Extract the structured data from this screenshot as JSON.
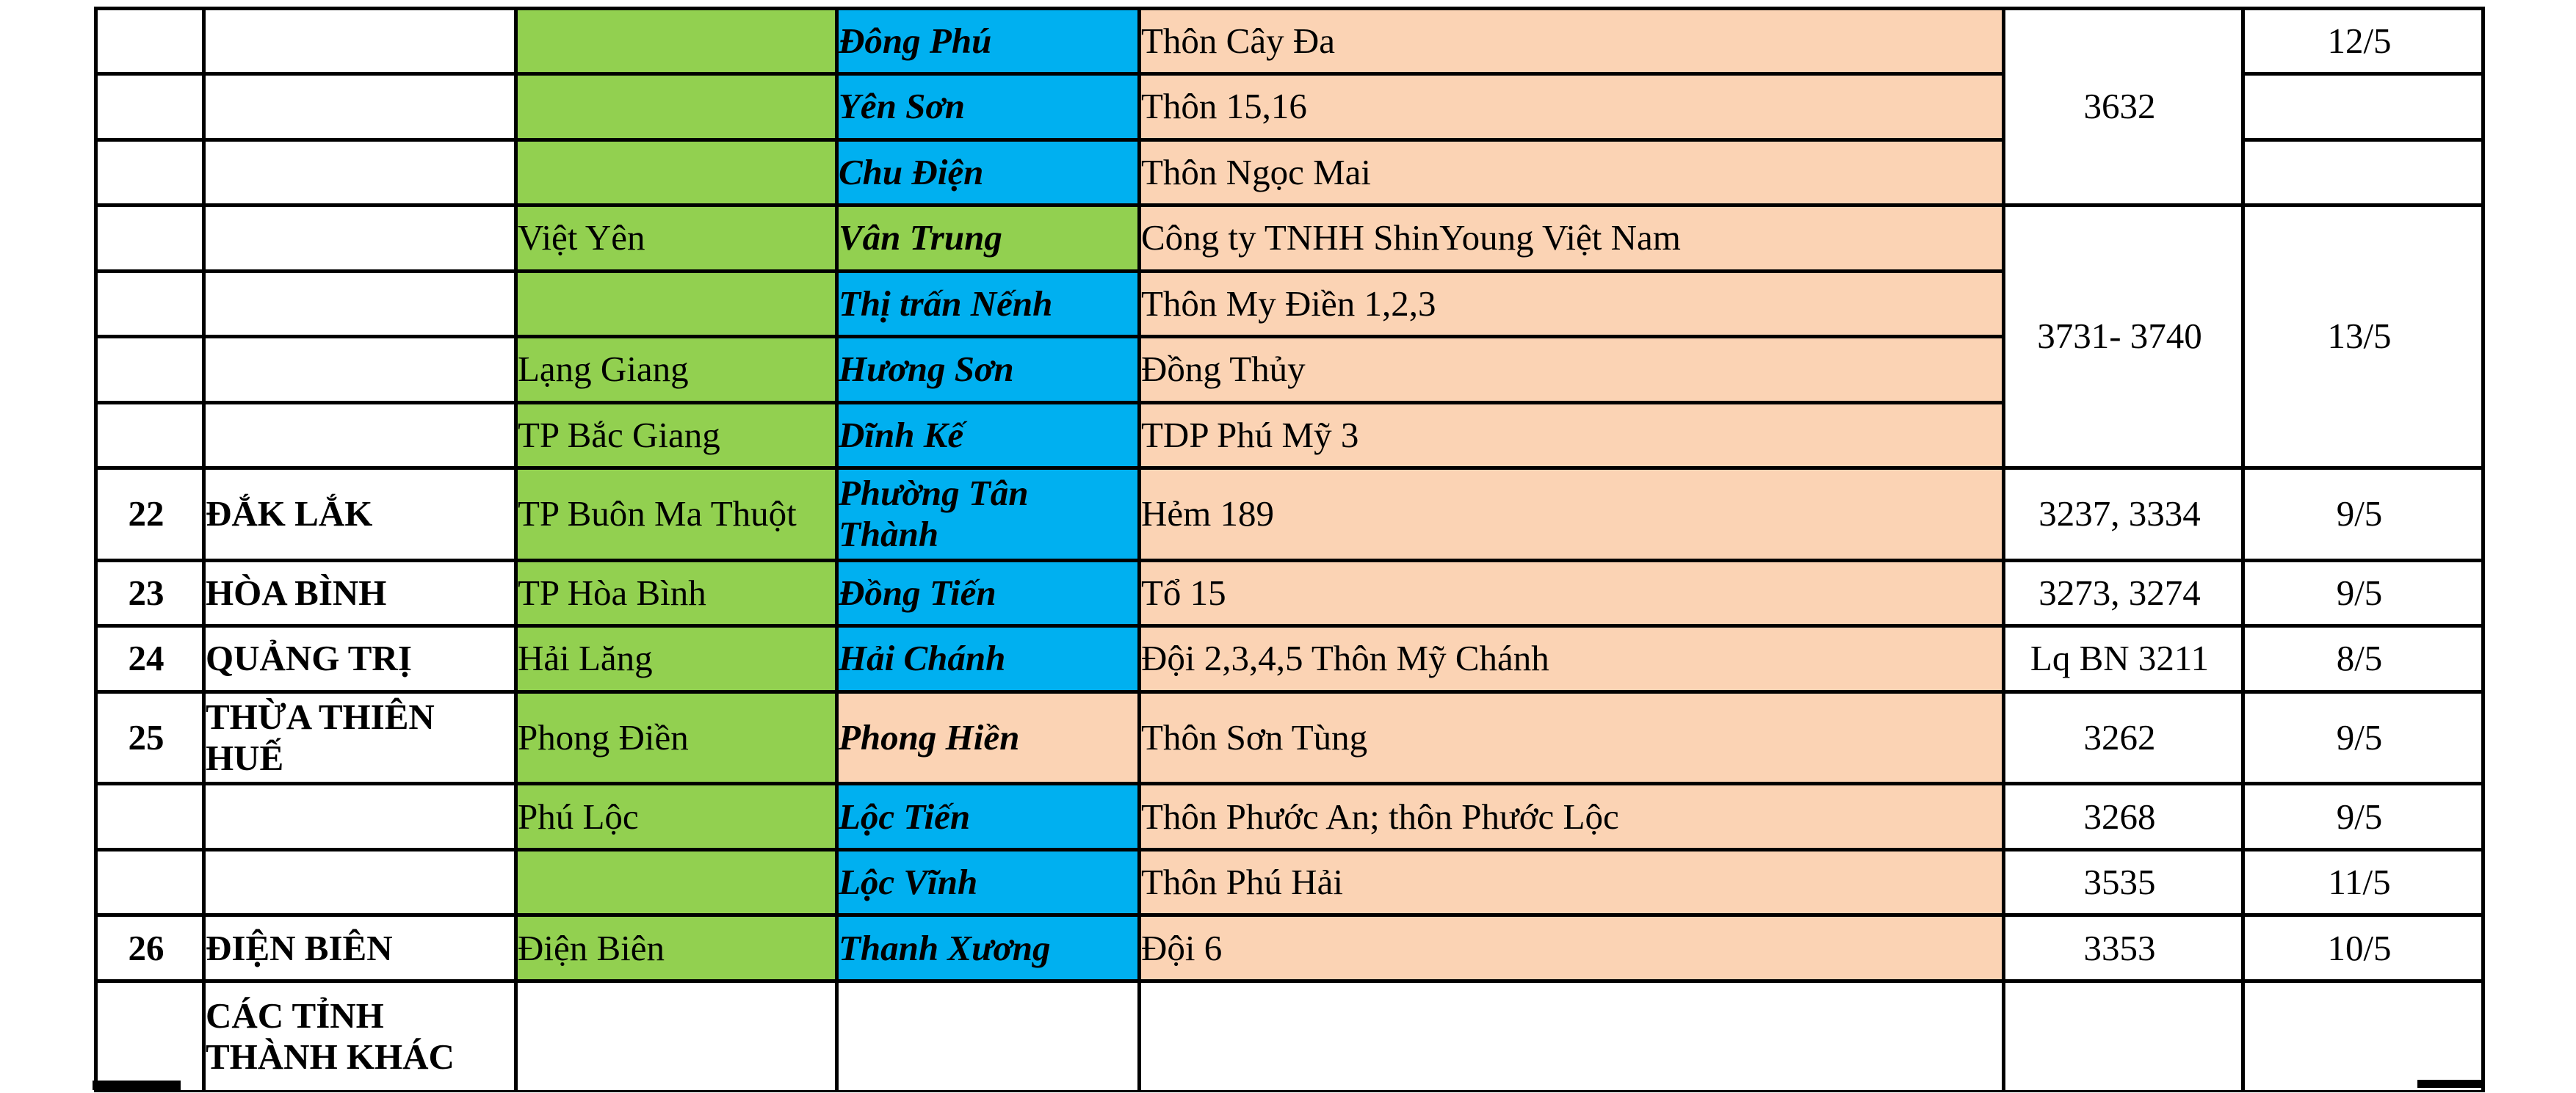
{
  "palette": {
    "green": "#92D050",
    "blue": "#00B0F0",
    "peach": "#FBD3B4",
    "red": "#FF0000",
    "line": "#000000",
    "page_background": "#FFFFFF"
  },
  "table": {
    "column_semantics": [
      "index",
      "province",
      "district",
      "commune",
      "location",
      "case-number",
      "date"
    ],
    "rows": [
      {
        "h": 89,
        "cells": [
          {
            "c": 1,
            "text": "",
            "bg": "white"
          },
          {
            "c": 2,
            "text": "",
            "bg": "white"
          },
          {
            "c": 3,
            "text": "",
            "bg": "green"
          },
          {
            "c": 4,
            "text": "Đông Phú",
            "bg": "blue"
          },
          {
            "c": 5,
            "text": "Thôn Cây Đa",
            "bg": "peach",
            "red": true
          },
          {
            "c": 6,
            "text": "3632",
            "bg": "white",
            "rowspan": 3
          },
          {
            "c": 7,
            "text": "12/5",
            "bg": "white"
          }
        ]
      },
      {
        "h": 90,
        "cells": [
          {
            "c": 1,
            "text": "",
            "bg": "white"
          },
          {
            "c": 2,
            "text": "",
            "bg": "white"
          },
          {
            "c": 3,
            "text": "",
            "bg": "green"
          },
          {
            "c": 4,
            "text": "Yên Sơn",
            "bg": "blue"
          },
          {
            "c": 5,
            "text": "Thôn 15,16",
            "bg": "peach",
            "red": true
          },
          {
            "c": 7,
            "text": "",
            "bg": "white"
          }
        ]
      },
      {
        "h": 89,
        "cells": [
          {
            "c": 1,
            "text": "",
            "bg": "white"
          },
          {
            "c": 2,
            "text": "",
            "bg": "white"
          },
          {
            "c": 3,
            "text": "",
            "bg": "green"
          },
          {
            "c": 4,
            "text": "Chu Điện",
            "bg": "blue"
          },
          {
            "c": 5,
            "text": "Thôn Ngọc Mai",
            "bg": "peach",
            "red": true
          },
          {
            "c": 7,
            "text": "",
            "bg": "white"
          }
        ]
      },
      {
        "h": 90,
        "cells": [
          {
            "c": 1,
            "text": "",
            "bg": "white"
          },
          {
            "c": 2,
            "text": "",
            "bg": "white"
          },
          {
            "c": 3,
            "text": "Việt Yên",
            "bg": "green"
          },
          {
            "c": 4,
            "text": "Vân Trung",
            "bg": "green"
          },
          {
            "c": 5,
            "text": "Công ty TNHH ShinYoung Việt Nam",
            "bg": "peach",
            "red": true
          },
          {
            "c": 6,
            "text": "3731- 3740",
            "bg": "white",
            "red": true,
            "rowspan": 4
          },
          {
            "c": 7,
            "text": "13/5",
            "bg": "white",
            "red": true,
            "rowspan": 4
          }
        ]
      },
      {
        "h": 89,
        "cells": [
          {
            "c": 1,
            "text": "",
            "bg": "white"
          },
          {
            "c": 2,
            "text": "",
            "bg": "white"
          },
          {
            "c": 3,
            "text": "",
            "bg": "green"
          },
          {
            "c": 4,
            "text": "Thị trấn Nếnh",
            "bg": "blue"
          },
          {
            "c": 5,
            "text": "Thôn My Điền 1,2,3",
            "bg": "peach",
            "red": true
          }
        ]
      },
      {
        "h": 90,
        "cells": [
          {
            "c": 1,
            "text": "",
            "bg": "white"
          },
          {
            "c": 2,
            "text": "",
            "bg": "white"
          },
          {
            "c": 3,
            "text": "Lạng Giang",
            "bg": "green"
          },
          {
            "c": 4,
            "text": "Hương Sơn",
            "bg": "blue"
          },
          {
            "c": 5,
            "text": "Đồng Thủy",
            "bg": "peach",
            "red": true
          }
        ]
      },
      {
        "h": 89,
        "cells": [
          {
            "c": 1,
            "text": "",
            "bg": "white"
          },
          {
            "c": 2,
            "text": "",
            "bg": "white"
          },
          {
            "c": 3,
            "text": "TP Bắc Giang",
            "bg": "green"
          },
          {
            "c": 4,
            "text": "Dĩnh Kế",
            "bg": "blue"
          },
          {
            "c": 5,
            "text": "TDP Phú Mỹ 3",
            "bg": "peach",
            "red": true
          }
        ]
      },
      {
        "h": 117,
        "cells": [
          {
            "c": 1,
            "text": "22",
            "bg": "white"
          },
          {
            "c": 2,
            "text": "ĐẮK LẮK",
            "bg": "white"
          },
          {
            "c": 3,
            "text": "TP Buôn Ma Thuột",
            "bg": "green"
          },
          {
            "c": 4,
            "text": "Phường Tân\nThành",
            "bg": "blue"
          },
          {
            "c": 5,
            "text": "Hẻm 189",
            "bg": "peach",
            "red": true
          },
          {
            "c": 6,
            "text": "3237, 3334",
            "bg": "white"
          },
          {
            "c": 7,
            "text": "9/5",
            "bg": "white"
          }
        ]
      },
      {
        "h": 89,
        "cells": [
          {
            "c": 1,
            "text": "23",
            "bg": "white"
          },
          {
            "c": 2,
            "text": "HÒA BÌNH",
            "bg": "white"
          },
          {
            "c": 3,
            "text": "TP Hòa Bình",
            "bg": "green"
          },
          {
            "c": 4,
            "text": "Đồng Tiến",
            "bg": "blue"
          },
          {
            "c": 5,
            "text": "Tổ 15",
            "bg": "peach",
            "red": true
          },
          {
            "c": 6,
            "text": "3273, 3274",
            "bg": "white"
          },
          {
            "c": 7,
            "text": "9/5",
            "bg": "white"
          }
        ]
      },
      {
        "h": 90,
        "cells": [
          {
            "c": 1,
            "text": "24",
            "bg": "white"
          },
          {
            "c": 2,
            "text": "QUẢNG TRỊ",
            "bg": "white"
          },
          {
            "c": 3,
            "text": "Hải Lăng",
            "bg": "green"
          },
          {
            "c": 4,
            "text": "Hải Chánh",
            "bg": "blue"
          },
          {
            "c": 5,
            "text": "Đội 2,3,4,5 Thôn Mỹ Chánh",
            "bg": "peach",
            "red": true
          },
          {
            "c": 6,
            "text": "Lq BN 3211",
            "bg": "white"
          },
          {
            "c": 7,
            "text": "8/5",
            "bg": "white"
          }
        ]
      },
      {
        "h": 120,
        "cells": [
          {
            "c": 1,
            "text": "25",
            "bg": "white"
          },
          {
            "c": 2,
            "text": "THỪA THIÊN\nHUẾ",
            "bg": "white"
          },
          {
            "c": 3,
            "text": "Phong Điền",
            "bg": "green"
          },
          {
            "c": 4,
            "text": "Phong Hiền",
            "bg": "peach"
          },
          {
            "c": 5,
            "text": "Thôn Sơn Tùng",
            "bg": "peach",
            "red": true
          },
          {
            "c": 6,
            "text": "3262",
            "bg": "white"
          },
          {
            "c": 7,
            "text": "9/5",
            "bg": "white"
          }
        ]
      },
      {
        "h": 90,
        "cells": [
          {
            "c": 1,
            "text": "",
            "bg": "white"
          },
          {
            "c": 2,
            "text": "",
            "bg": "white"
          },
          {
            "c": 3,
            "text": "Phú Lộc",
            "bg": "green"
          },
          {
            "c": 4,
            "text": "Lộc Tiến",
            "bg": "blue"
          },
          {
            "c": 5,
            "text": "Thôn Phước An; thôn Phước Lộc",
            "bg": "peach",
            "red": true
          },
          {
            "c": 6,
            "text": "3268",
            "bg": "white"
          },
          {
            "c": 7,
            "text": "9/5",
            "bg": "white"
          }
        ]
      },
      {
        "h": 89,
        "cells": [
          {
            "c": 1,
            "text": "",
            "bg": "white"
          },
          {
            "c": 2,
            "text": "",
            "bg": "white"
          },
          {
            "c": 3,
            "text": "",
            "bg": "green"
          },
          {
            "c": 4,
            "text": "Lộc Vĩnh",
            "bg": "blue"
          },
          {
            "c": 5,
            "text": "Thôn Phú Hải",
            "bg": "peach",
            "red": true
          },
          {
            "c": 6,
            "text": "3535",
            "bg": "white"
          },
          {
            "c": 7,
            "text": "11/5",
            "bg": "white"
          }
        ]
      },
      {
        "h": 90,
        "cells": [
          {
            "c": 1,
            "text": "26",
            "bg": "white"
          },
          {
            "c": 2,
            "text": "ĐIỆN BIÊN",
            "bg": "white"
          },
          {
            "c": 3,
            "text": "Điện Biên",
            "bg": "green"
          },
          {
            "c": 4,
            "text": "Thanh Xương",
            "bg": "blue"
          },
          {
            "c": 5,
            "text": "Đội 6",
            "bg": "peach",
            "red": true
          },
          {
            "c": 6,
            "text": "3353",
            "bg": "white"
          },
          {
            "c": 7,
            "text": "10/5",
            "bg": "white"
          }
        ]
      },
      {
        "h": 150,
        "cells": [
          {
            "c": 1,
            "text": "",
            "bg": "white"
          },
          {
            "c": 2,
            "text": "CÁC TỈNH\nTHÀNH KHÁC",
            "bg": "white"
          },
          {
            "c": 3,
            "text": "",
            "bg": "white"
          },
          {
            "c": 4,
            "text": "",
            "bg": "white"
          },
          {
            "c": 5,
            "text": "",
            "bg": "white"
          },
          {
            "c": 6,
            "text": "",
            "bg": "white"
          },
          {
            "c": 7,
            "text": "",
            "bg": "white"
          }
        ]
      }
    ]
  }
}
